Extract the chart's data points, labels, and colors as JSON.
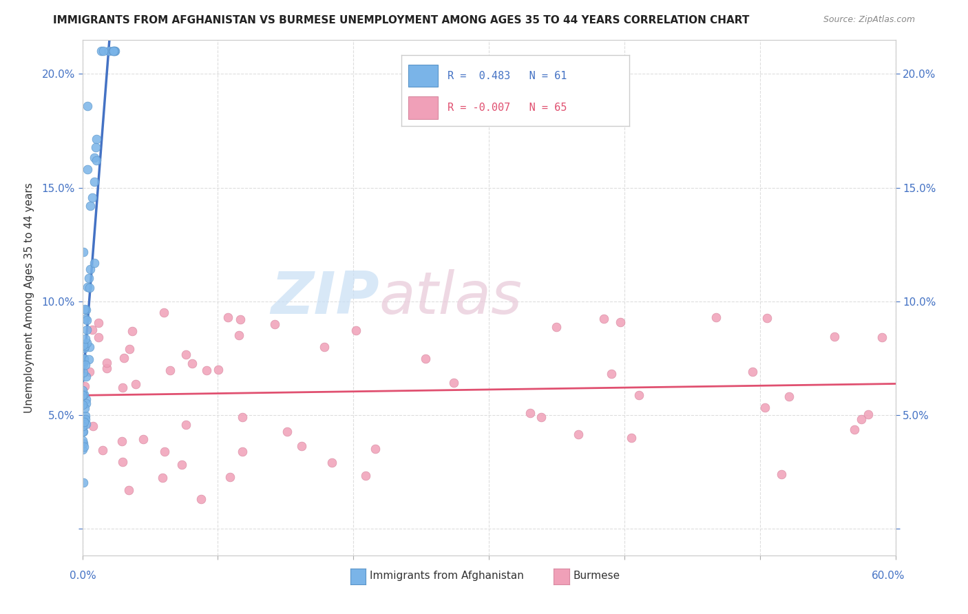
{
  "title": "IMMIGRANTS FROM AFGHANISTAN VS BURMESE UNEMPLOYMENT AMONG AGES 35 TO 44 YEARS CORRELATION CHART",
  "source": "Source: ZipAtlas.com",
  "ylabel": "Unemployment Among Ages 35 to 44 years",
  "xlim": [
    0.0,
    0.6
  ],
  "ylim": [
    -0.012,
    0.215
  ],
  "ytick_vals": [
    0.0,
    0.05,
    0.1,
    0.15,
    0.2
  ],
  "ytick_labels": [
    "",
    "5.0%",
    "10.0%",
    "15.0%",
    "20.0%"
  ],
  "legend_r1_text": "R =  0.483   N = 61",
  "legend_r2_text": "R = -0.007   N = 65",
  "color_afghanistan": "#7ab4e8",
  "color_burmese": "#f0a0b8",
  "color_trendline_afghanistan": "#4472c4",
  "color_trendline_burmese": "#e05070",
  "color_trendline_dashed": "#bbbbbb",
  "color_axis": "#4472c4",
  "color_grid": "#dddddd",
  "background_color": "#ffffff",
  "watermark_zip_color": "#c8dff5",
  "watermark_atlas_color": "#e8c8d8"
}
